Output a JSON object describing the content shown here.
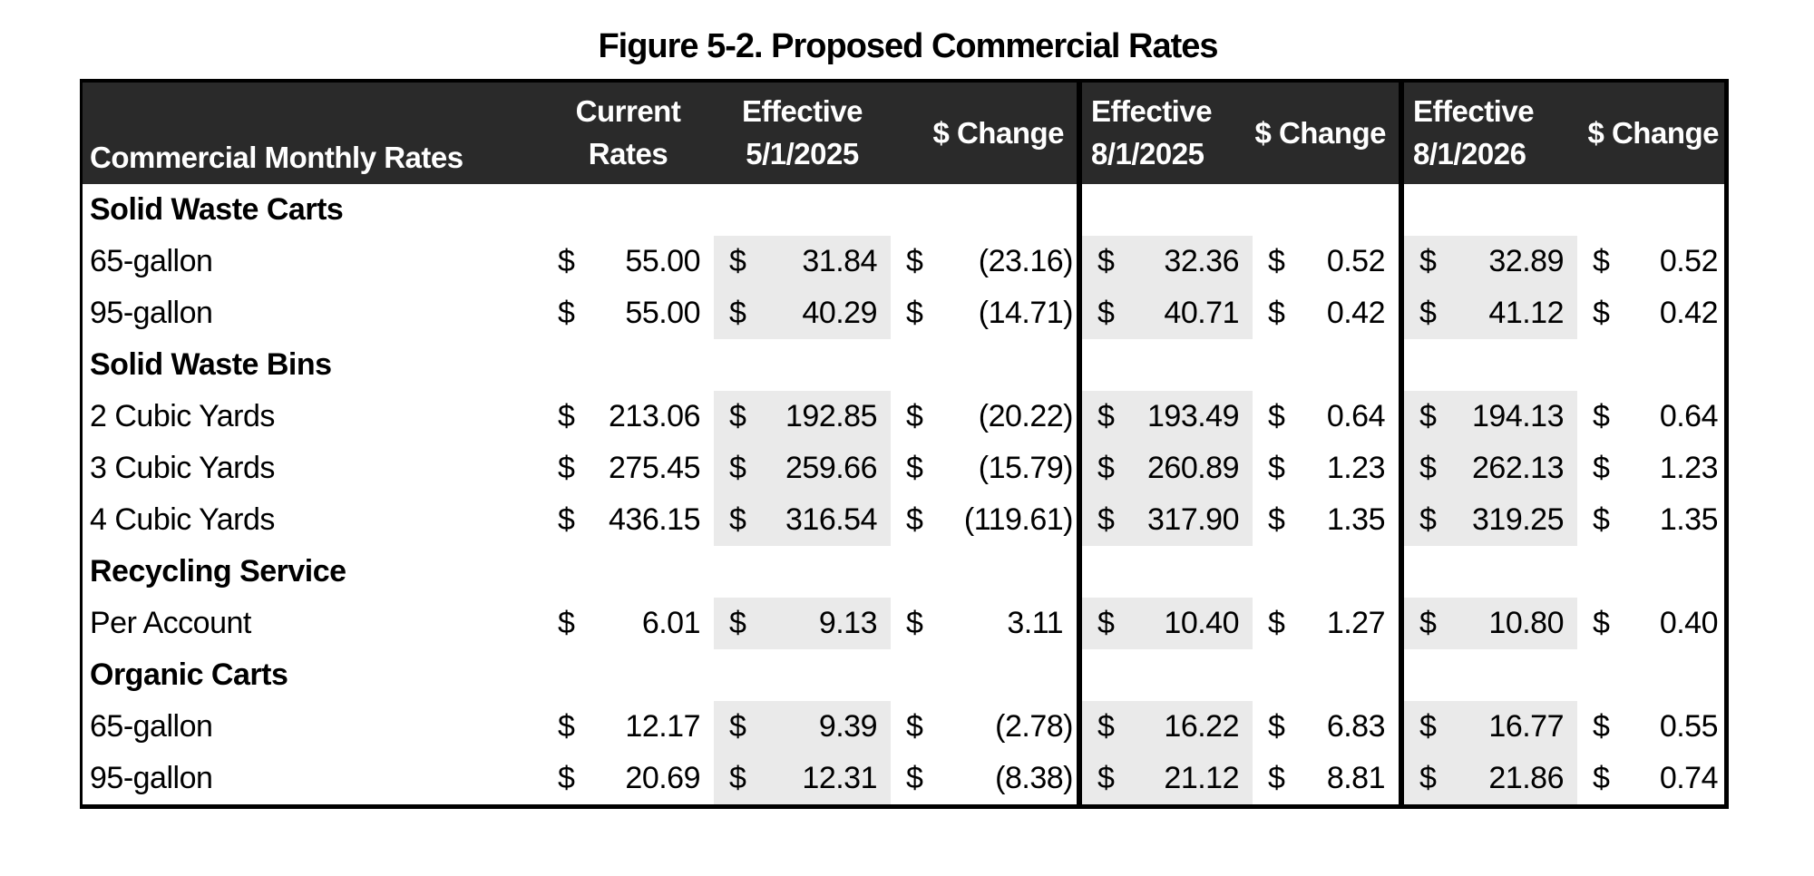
{
  "title": "Figure 5-2. Proposed Commercial Rates",
  "colors": {
    "header_bg": "#2a2a2a",
    "header_text": "#ffffff",
    "highlight_bg": "#eaeaea",
    "border": "#000000",
    "text": "#000000",
    "page_bg": "#ffffff"
  },
  "table": {
    "currency_symbol": "$",
    "label_header": "Commercial Monthly Rates",
    "columns": [
      {
        "id": "current-rates",
        "label": "Current\nRates",
        "highlight": false
      },
      {
        "id": "effective-5-1-2025",
        "label": "Effective\n5/1/2025",
        "highlight": true
      },
      {
        "id": "change-5-1-2025",
        "label": "$ Change",
        "highlight": false
      },
      {
        "id": "effective-8-1-2025",
        "label": "Effective\n8/1/2025",
        "highlight": true
      },
      {
        "id": "change-8-1-2025",
        "label": "$ Change",
        "highlight": false
      },
      {
        "id": "effective-8-1-2026",
        "label": "Effective\n8/1/2026",
        "highlight": true
      },
      {
        "id": "change-8-1-2026",
        "label": "$ Change",
        "highlight": false
      }
    ],
    "rows": [
      {
        "type": "section",
        "label": "Solid Waste Carts",
        "values": [
          "",
          "",
          "",
          "",
          "",
          "",
          ""
        ]
      },
      {
        "type": "data",
        "label": "65-gallon",
        "values": [
          "55.00",
          "31.84",
          "(23.16)",
          "32.36",
          "0.52",
          "32.89",
          "0.52"
        ]
      },
      {
        "type": "data",
        "label": "95-gallon",
        "values": [
          "55.00",
          "40.29",
          "(14.71)",
          "40.71",
          "0.42",
          "41.12",
          "0.42"
        ]
      },
      {
        "type": "section",
        "label": "Solid Waste Bins",
        "values": [
          "",
          "",
          "",
          "",
          "",
          "",
          ""
        ]
      },
      {
        "type": "data",
        "label": "2 Cubic Yards",
        "values": [
          "213.06",
          "192.85",
          "(20.22)",
          "193.49",
          "0.64",
          "194.13",
          "0.64"
        ]
      },
      {
        "type": "data",
        "label": "3 Cubic Yards",
        "values": [
          "275.45",
          "259.66",
          "(15.79)",
          "260.89",
          "1.23",
          "262.13",
          "1.23"
        ]
      },
      {
        "type": "data",
        "label": "4 Cubic Yards",
        "values": [
          "436.15",
          "316.54",
          "(119.61)",
          "317.90",
          "1.35",
          "319.25",
          "1.35"
        ]
      },
      {
        "type": "section",
        "label": "Recycling Service",
        "values": [
          "",
          "",
          "",
          "",
          "",
          "",
          ""
        ]
      },
      {
        "type": "data",
        "label": "Per Account",
        "values": [
          "6.01",
          "9.13",
          "3.11",
          "10.40",
          "1.27",
          "10.80",
          "0.40"
        ]
      },
      {
        "type": "section",
        "label": "Organic Carts",
        "values": [
          "",
          "",
          "",
          "",
          "",
          "",
          ""
        ]
      },
      {
        "type": "data",
        "label": "65-gallon",
        "values": [
          "12.17",
          "9.39",
          "(2.78)",
          "16.22",
          "6.83",
          "16.77",
          "0.55"
        ]
      },
      {
        "type": "data",
        "label": "95-gallon",
        "values": [
          "20.69",
          "12.31",
          "(8.38)",
          "21.12",
          "8.81",
          "21.86",
          "0.74"
        ]
      }
    ]
  }
}
